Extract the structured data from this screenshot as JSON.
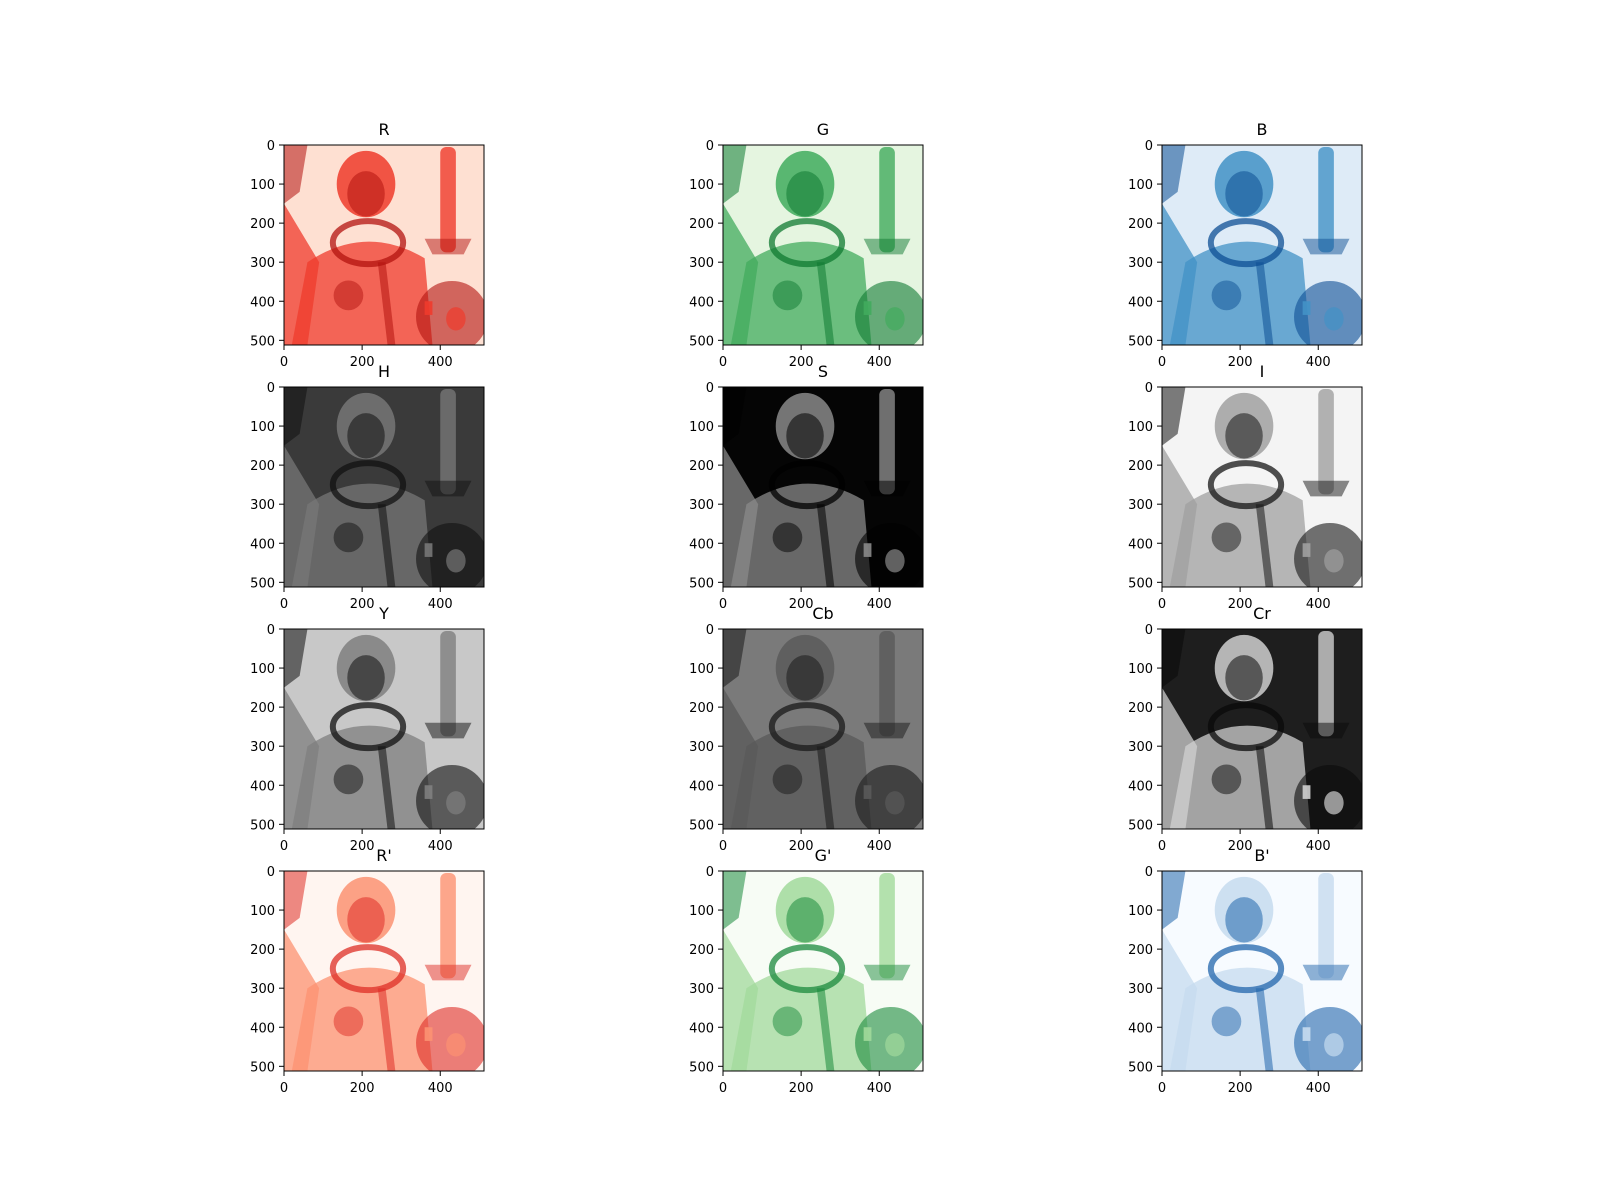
{
  "figure": {
    "columns": 3,
    "rows": 4,
    "x_ticks": [
      "0",
      "200",
      "400"
    ],
    "y_ticks": [
      "0",
      "100",
      "200",
      "300",
      "400",
      "500"
    ],
    "x_tick_values": [
      0,
      200,
      400
    ],
    "y_tick_values": [
      0,
      100,
      200,
      300,
      400,
      500
    ],
    "image_size": [
      512,
      512
    ],
    "panels": [
      {
        "title": "R",
        "cmap": "Reds",
        "base": "#fee0d2",
        "dark": "#b3130f",
        "mid": "#ef3b2c",
        "inverted": true
      },
      {
        "title": "G",
        "cmap": "Greens",
        "base": "#e5f5e0",
        "dark": "#0f7a32",
        "mid": "#41ab5d",
        "inverted": true
      },
      {
        "title": "B",
        "cmap": "Blues",
        "base": "#deebf7",
        "dark": "#0d4f94",
        "mid": "#4292c6",
        "inverted": true
      },
      {
        "title": "H",
        "cmap": "gray",
        "base": "#3a3a3a",
        "dark": "#111111",
        "mid": "#777777",
        "inverted": false
      },
      {
        "title": "S",
        "cmap": "gray",
        "base": "#050505",
        "dark": "#000000",
        "mid": "#8a8a8a",
        "inverted": false
      },
      {
        "title": "I",
        "cmap": "gray",
        "base": "#f4f4f4",
        "dark": "#161616",
        "mid": "#a0a0a0",
        "inverted": false
      },
      {
        "title": "Y",
        "cmap": "gray",
        "base": "#c8c8c8",
        "dark": "#101010",
        "mid": "#7f7f7f",
        "inverted": false
      },
      {
        "title": "Cb",
        "cmap": "gray",
        "base": "#7a7a7a",
        "dark": "#1a1a1a",
        "mid": "#5a5a5a",
        "inverted": false
      },
      {
        "title": "Cr",
        "cmap": "gray",
        "base": "#1e1e1e",
        "dark": "#0a0a0a",
        "mid": "#d0d0d0",
        "inverted": false
      },
      {
        "title": "R'",
        "cmap": "Reds",
        "base": "#fff5f0",
        "dark": "#de2d26",
        "mid": "#fc9272",
        "inverted": false
      },
      {
        "title": "G'",
        "cmap": "Greens",
        "base": "#f7fcf5",
        "dark": "#1b8a3c",
        "mid": "#a1d99b",
        "inverted": false
      },
      {
        "title": "B'",
        "cmap": "Blues",
        "base": "#f7fbff",
        "dark": "#2166ac",
        "mid": "#c6dbef",
        "inverted": false
      }
    ]
  }
}
